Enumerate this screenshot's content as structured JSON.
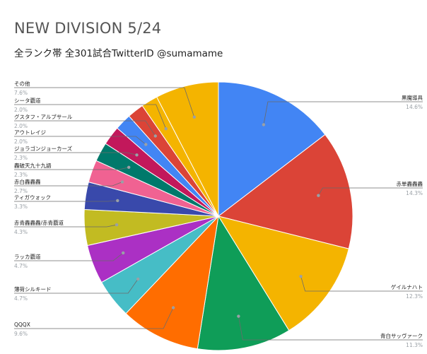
{
  "chart_data": {
    "type": "pie",
    "title": "NEW DIVISION 5/24",
    "subtitle": "全ランク帯 全301試合TwitterID @sumamame",
    "slices": [
      {
        "label": "黒魔導具",
        "pct_label": "14.6%",
        "value": 14.6,
        "color": "#4285f4"
      },
      {
        "label": "赤単轟轟轟",
        "pct_label": "14.3%",
        "value": 14.3,
        "color": "#db4437"
      },
      {
        "label": "ゲイルナハト",
        "pct_label": "12.3%",
        "value": 12.3,
        "color": "#f4b400"
      },
      {
        "label": "青白サッヴァーク",
        "pct_label": "11.3%",
        "value": 11.3,
        "color": "#0f9d58"
      },
      {
        "label": "QQQX",
        "pct_label": "9.6%",
        "value": 9.6,
        "color": "#ff6d00"
      },
      {
        "label": "薄荷シルキード",
        "pct_label": "4.7%",
        "value": 4.7,
        "color": "#46bdc6"
      },
      {
        "label": "ラッカ覇道",
        "pct_label": "4.7%",
        "value": 4.7,
        "color": "#ab30c4"
      },
      {
        "label": "赤青轟轟轟/赤青覇道",
        "pct_label": "4.3%",
        "value": 4.3,
        "color": "#c2bb22"
      },
      {
        "label": "ティガウォック",
        "pct_label": "3.3%",
        "value": 3.3,
        "color": "#3949ab"
      },
      {
        "label": "赤白轟轟轟",
        "pct_label": "2.7%",
        "value": 2.7,
        "color": "#f06292"
      },
      {
        "label": "轟破天九十九語",
        "pct_label": "2.3%",
        "value": 2.3,
        "color": "#00796b"
      },
      {
        "label": "ジョラゴンジョーカーズ",
        "pct_label": "2.3%",
        "value": 2.3,
        "color": "#c2185b"
      },
      {
        "label": "アウトレイジ",
        "pct_label": "2.0%",
        "value": 2.0,
        "color": "#4285f4"
      },
      {
        "label": "グスタフ・アルブサール",
        "pct_label": "2.0%",
        "value": 2.0,
        "color": "#db4437"
      },
      {
        "label": "シータ覇道",
        "pct_label": "2.0%",
        "value": 2.0,
        "color": "#f4b400"
      },
      {
        "label": "その他",
        "pct_label": "7.6%",
        "value": 7.6,
        "color": "#f4b400"
      }
    ]
  }
}
